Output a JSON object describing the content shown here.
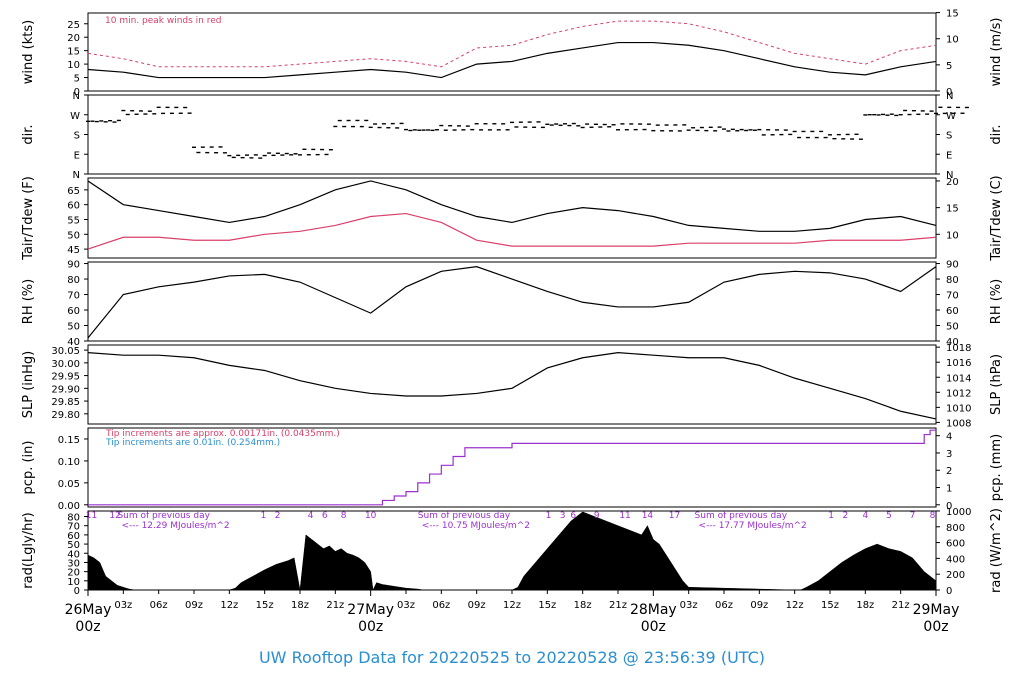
{
  "title": "UW Rooftop Data for 20220525  to  20220528 @ 23:56:39  (UTC)",
  "colors": {
    "black": "#000000",
    "red": "#d9406a",
    "purple": "#9b30d0",
    "blue": "#2a8fd0"
  },
  "chart_data": [
    {
      "id": "wind",
      "type": "line",
      "ylabel_left": "wind (kts)",
      "ylabel_right": "wind (m/s)",
      "ticks_left": [
        "0",
        "5",
        "10",
        "15",
        "20",
        "25"
      ],
      "ticks_right": [
        "0",
        "5",
        "10",
        "15"
      ],
      "ylim": [
        0,
        29
      ],
      "annotation": "10 min. peak winds in red",
      "series": [
        {
          "role": "wind",
          "color": "black",
          "x": [
            0,
            3,
            6,
            9,
            12,
            15,
            18,
            21,
            24,
            27,
            30,
            33,
            36,
            39,
            42,
            45,
            48,
            51,
            54,
            57,
            60,
            63,
            66,
            69,
            72
          ],
          "values": [
            8,
            7,
            5,
            5,
            5,
            5,
            6,
            7,
            8,
            7,
            5,
            10,
            11,
            14,
            16,
            18,
            18,
            17,
            15,
            12,
            9,
            7,
            6,
            9,
            11
          ]
        },
        {
          "role": "10 min. peak winds",
          "color": "red",
          "x": [
            0,
            3,
            6,
            9,
            12,
            15,
            18,
            21,
            24,
            27,
            30,
            33,
            36,
            39,
            42,
            45,
            48,
            51,
            54,
            57,
            60,
            63,
            66,
            69,
            72
          ],
          "values": [
            14,
            12,
            9,
            9,
            9,
            9,
            10,
            11,
            12,
            11,
            9,
            16,
            17,
            21,
            24,
            26,
            26,
            25,
            22,
            18,
            14,
            12,
            10,
            15,
            17
          ]
        }
      ]
    },
    {
      "id": "dir",
      "type": "scatter",
      "ylabel_left": "dir.",
      "ylabel_right": "dir.",
      "ticks_left": [
        "N",
        "E",
        "S",
        "W",
        "N"
      ],
      "ticks_right": [
        "N",
        "E",
        "S",
        "W",
        "N"
      ],
      "ylim": [
        0,
        360
      ],
      "series": [
        {
          "role": "direction (deg)",
          "color": "black",
          "x": [
            0,
            3,
            6,
            9,
            12,
            15,
            18,
            21,
            24,
            27,
            30,
            33,
            36,
            39,
            42,
            45,
            48,
            51,
            54,
            57,
            60,
            63,
            66,
            69,
            72
          ],
          "values": [
            240,
            280,
            290,
            110,
            80,
            90,
            100,
            230,
            220,
            200,
            210,
            215,
            225,
            225,
            220,
            215,
            210,
            205,
            200,
            190,
            180,
            170,
            270,
            280,
            290
          ]
        }
      ]
    },
    {
      "id": "temp",
      "type": "line",
      "ylabel_left": "Tair/Tdew (F)",
      "ylabel_right": "Tair/Tdew (C)",
      "ticks_left": [
        "45",
        "50",
        "55",
        "60",
        "65"
      ],
      "ticks_right": [
        "10",
        "15",
        "20"
      ],
      "ylim": [
        42,
        69
      ],
      "series": [
        {
          "role": "Tair",
          "color": "black",
          "x": [
            0,
            3,
            6,
            9,
            12,
            15,
            18,
            21,
            24,
            27,
            30,
            33,
            36,
            39,
            42,
            45,
            48,
            51,
            54,
            57,
            60,
            63,
            66,
            69,
            72
          ],
          "values": [
            68,
            60,
            58,
            56,
            54,
            56,
            60,
            65,
            68,
            65,
            60,
            56,
            54,
            57,
            59,
            58,
            56,
            53,
            52,
            51,
            51,
            52,
            55,
            56,
            53
          ]
        },
        {
          "role": "Tdew",
          "color": "red",
          "x": [
            0,
            3,
            6,
            9,
            12,
            15,
            18,
            21,
            24,
            27,
            30,
            33,
            36,
            39,
            42,
            45,
            48,
            51,
            54,
            57,
            60,
            63,
            66,
            69,
            72
          ],
          "values": [
            45,
            49,
            49,
            48,
            48,
            50,
            51,
            53,
            56,
            57,
            54,
            48,
            46,
            46,
            46,
            46,
            46,
            47,
            47,
            47,
            47,
            48,
            48,
            48,
            49
          ]
        }
      ]
    },
    {
      "id": "rh",
      "type": "line",
      "ylabel_left": "RH (%)",
      "ylabel_right": "RH (%)",
      "ticks_left": [
        "40",
        "50",
        "60",
        "70",
        "80",
        "90"
      ],
      "ticks_right": [
        "40",
        "50",
        "60",
        "70",
        "80",
        "90"
      ],
      "ylim": [
        40,
        91
      ],
      "series": [
        {
          "role": "RH",
          "color": "black",
          "x": [
            0,
            3,
            6,
            9,
            12,
            15,
            18,
            21,
            24,
            27,
            30,
            33,
            36,
            39,
            42,
            45,
            48,
            51,
            54,
            57,
            60,
            63,
            66,
            69,
            72
          ],
          "values": [
            42,
            70,
            75,
            78,
            82,
            83,
            78,
            68,
            58,
            75,
            85,
            88,
            80,
            72,
            65,
            62,
            62,
            65,
            78,
            83,
            85,
            84,
            80,
            72,
            88
          ]
        }
      ]
    },
    {
      "id": "slp",
      "type": "line",
      "ylabel_left": "SLP (inHg)",
      "ylabel_right": "SLP (hPa)",
      "ticks_left": [
        "29.80",
        "29.85",
        "29.90",
        "29.95",
        "30.00",
        "30.05"
      ],
      "ticks_right": [
        "1008",
        "1010",
        "1012",
        "1014",
        "1016",
        "1018"
      ],
      "ylim": [
        29.76,
        30.07
      ],
      "series": [
        {
          "role": "SLP",
          "color": "black",
          "x": [
            0,
            3,
            6,
            9,
            12,
            15,
            18,
            21,
            24,
            27,
            30,
            33,
            36,
            39,
            42,
            45,
            48,
            51,
            54,
            57,
            60,
            63,
            66,
            69,
            72
          ],
          "values": [
            30.04,
            30.03,
            30.03,
            30.02,
            29.99,
            29.97,
            29.93,
            29.9,
            29.88,
            29.87,
            29.87,
            29.88,
            29.9,
            29.98,
            30.02,
            30.04,
            30.03,
            30.02,
            30.02,
            29.99,
            29.94,
            29.9,
            29.86,
            29.81,
            29.78
          ]
        }
      ]
    },
    {
      "id": "pcp",
      "type": "line",
      "ylabel_left": "pcp. (in)",
      "ylabel_right": "pcp. (mm)",
      "ticks_left": [
        "0.00",
        "0.05",
        "0.10",
        "0.15"
      ],
      "ticks_right": [
        "0",
        "1",
        "2",
        "3",
        "4"
      ],
      "ylim": [
        -0.005,
        0.175
      ],
      "notes": [
        "Tip increments are approx. 0.00171in. (0.0435mm.)",
        "Tip increments are 0.01in. (0.254mm.)"
      ],
      "series": [
        {
          "role": "cumulative precipitation",
          "color": "purple",
          "x": [
            0,
            24.6,
            25,
            26,
            27,
            28,
            29,
            30,
            31,
            32,
            34,
            36,
            38,
            40,
            52,
            60,
            67,
            70,
            71,
            71.5,
            72
          ],
          "values": [
            0,
            0,
            0.01,
            0.02,
            0.03,
            0.05,
            0.07,
            0.09,
            0.11,
            0.13,
            0.13,
            0.14,
            0.14,
            0.14,
            0.14,
            0.14,
            0.14,
            0.14,
            0.16,
            0.17,
            0.17
          ]
        }
      ]
    },
    {
      "id": "rad",
      "type": "area",
      "ylabel_left": "rad(Lgly/hr)",
      "ylabel_right": "rad (W/m^2)",
      "ticks_left": [
        "0",
        "10",
        "20",
        "30",
        "40",
        "50",
        "60",
        "70",
        "80"
      ],
      "ticks_right": [
        "0",
        "200",
        "400",
        "600",
        "800",
        "1000"
      ],
      "ylim": [
        0,
        86
      ],
      "hour_labels": [
        {
          "x": 0.3,
          "t": "11"
        },
        {
          "x": 2.3,
          "t": "12"
        },
        {
          "x": 14.9,
          "t": "1"
        },
        {
          "x": 16.1,
          "t": "2"
        },
        {
          "x": 18.9,
          "t": "4"
        },
        {
          "x": 20.1,
          "t": "6"
        },
        {
          "x": 21.7,
          "t": "8"
        },
        {
          "x": 24.0,
          "t": "10"
        },
        {
          "x": 39.1,
          "t": "1"
        },
        {
          "x": 40.3,
          "t": "3"
        },
        {
          "x": 41.2,
          "t": "6"
        },
        {
          "x": 43.2,
          "t": "9"
        },
        {
          "x": 45.6,
          "t": "11"
        },
        {
          "x": 47.5,
          "t": "14"
        },
        {
          "x": 49.8,
          "t": "17"
        },
        {
          "x": 63.1,
          "t": "1"
        },
        {
          "x": 64.3,
          "t": "2"
        },
        {
          "x": 66.0,
          "t": "4"
        },
        {
          "x": 68.0,
          "t": "5"
        },
        {
          "x": 70.0,
          "t": "7"
        },
        {
          "x": 71.7,
          "t": "8"
        }
      ],
      "daily_sums": [
        {
          "x": 2.5,
          "line1": "Sum of previous day",
          "line2": "<--- 12.29 MJoules/m^2"
        },
        {
          "x": 28.0,
          "line1": "Sum of previous day",
          "line2": "<--- 10.75 MJoules/m^2"
        },
        {
          "x": 51.5,
          "line1": "Sum of previous day",
          "line2": "<--- 17.77 MJoules/m^2"
        }
      ],
      "series": [
        {
          "role": "solar radiation",
          "color": "black",
          "x": [
            0,
            0.5,
            1,
            1.5,
            2,
            2.5,
            3,
            3.5,
            4,
            12,
            12.5,
            13,
            14,
            15,
            16,
            17,
            17.5,
            18,
            18.5,
            19,
            19.5,
            20,
            20.5,
            21,
            21.5,
            22,
            22.5,
            23,
            23.5,
            24,
            24.2,
            24.5,
            25,
            26,
            27,
            28,
            28.5,
            36,
            36.5,
            37,
            38,
            39,
            40,
            41,
            42,
            43,
            44,
            45,
            46,
            47,
            47.5,
            48,
            48.5,
            49,
            49.5,
            50,
            50.5,
            51,
            60,
            60.5,
            61,
            62,
            63,
            64,
            65,
            66,
            67,
            68,
            69,
            70,
            71,
            72
          ],
          "values": [
            38,
            35,
            30,
            15,
            10,
            5,
            3,
            1,
            0,
            0,
            2,
            8,
            15,
            22,
            28,
            32,
            35,
            0,
            60,
            55,
            50,
            45,
            48,
            42,
            45,
            40,
            38,
            35,
            30,
            20,
            0,
            8,
            6,
            4,
            2,
            1,
            0,
            0,
            3,
            15,
            30,
            45,
            60,
            75,
            85,
            80,
            75,
            70,
            65,
            60,
            70,
            55,
            50,
            40,
            30,
            20,
            10,
            3,
            0,
            0,
            3,
            10,
            20,
            30,
            38,
            45,
            50,
            45,
            42,
            35,
            20,
            10
          ]
        }
      ]
    }
  ],
  "x_axis": {
    "minor": [
      {
        "x": 3,
        "t": "03z"
      },
      {
        "x": 6,
        "t": "06z"
      },
      {
        "x": 9,
        "t": "09z"
      },
      {
        "x": 12,
        "t": "12z"
      },
      {
        "x": 15,
        "t": "15z"
      },
      {
        "x": 18,
        "t": "18z"
      },
      {
        "x": 21,
        "t": "21z"
      },
      {
        "x": 27,
        "t": "03z"
      },
      {
        "x": 30,
        "t": "06z"
      },
      {
        "x": 33,
        "t": "09z"
      },
      {
        "x": 36,
        "t": "12z"
      },
      {
        "x": 39,
        "t": "15z"
      },
      {
        "x": 42,
        "t": "18z"
      },
      {
        "x": 45,
        "t": "21z"
      },
      {
        "x": 51,
        "t": "03z"
      },
      {
        "x": 54,
        "t": "06z"
      },
      {
        "x": 57,
        "t": "09z"
      },
      {
        "x": 60,
        "t": "12z"
      },
      {
        "x": 63,
        "t": "15z"
      },
      {
        "x": 66,
        "t": "18z"
      },
      {
        "x": 69,
        "t": "21z"
      }
    ],
    "major": [
      {
        "x": 0,
        "date": "26May",
        "hour": "00z"
      },
      {
        "x": 24,
        "date": "27May",
        "hour": "00z"
      },
      {
        "x": 48,
        "date": "28May",
        "hour": "00z"
      },
      {
        "x": 72,
        "date": "29May",
        "hour": "00z"
      }
    ]
  }
}
